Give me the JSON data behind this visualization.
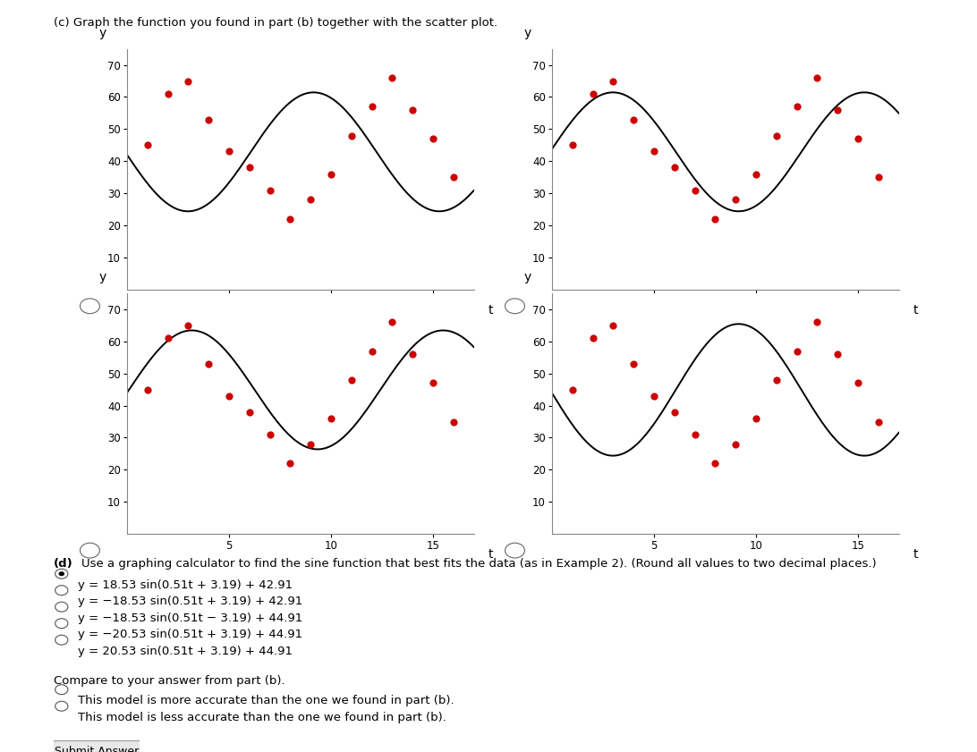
{
  "scatter_t": [
    1,
    2,
    3,
    4,
    5,
    6,
    7,
    8,
    9,
    10,
    11,
    12,
    13,
    14,
    15,
    16
  ],
  "scatter_y": [
    45,
    61,
    65,
    53,
    43,
    38,
    31,
    22,
    28,
    36,
    48,
    57,
    66,
    56,
    47,
    35
  ],
  "curve_params": [
    [
      18.53,
      0.51,
      3.19,
      42.91
    ],
    [
      -18.53,
      0.51,
      3.19,
      42.91
    ],
    [
      -18.53,
      0.51,
      -3.19,
      44.91
    ],
    [
      20.53,
      0.51,
      3.19,
      44.91
    ]
  ],
  "ylim": [
    0,
    75
  ],
  "xlim": [
    0,
    17
  ],
  "yticks": [
    10,
    20,
    30,
    40,
    50,
    60,
    70
  ],
  "xticks": [
    5,
    10,
    15
  ],
  "title": "(c) Graph the function you found in part (b) together with the scatter plot.",
  "xlabel": "t",
  "ylabel": "y",
  "dot_color": "#cc0000",
  "curve_color": "black",
  "background": "white",
  "part_d_bold": "(d)",
  "part_d_rest": " Use a graphing calculator to find the sine function that best fits the data (as in Example 2). (Round all values to two decimal places.)",
  "options": [
    "y = 18.53 sin(0.51t + 3.19) + 42.91",
    "y = −18.53 sin(0.51t + 3.19) + 42.91",
    "y = −18.53 sin(0.51t − 3.19) + 44.91",
    "y = −20.53 sin(0.51t + 3.19) + 44.91",
    "y = 20.53 sin(0.51t + 3.19) + 44.91"
  ],
  "selected_option": 0,
  "compare_text": "Compare to your answer from part (b).",
  "compare_options": [
    "This model is more accurate than the one we found in part (b).",
    "This model is less accurate than the one we found in part (b)."
  ]
}
